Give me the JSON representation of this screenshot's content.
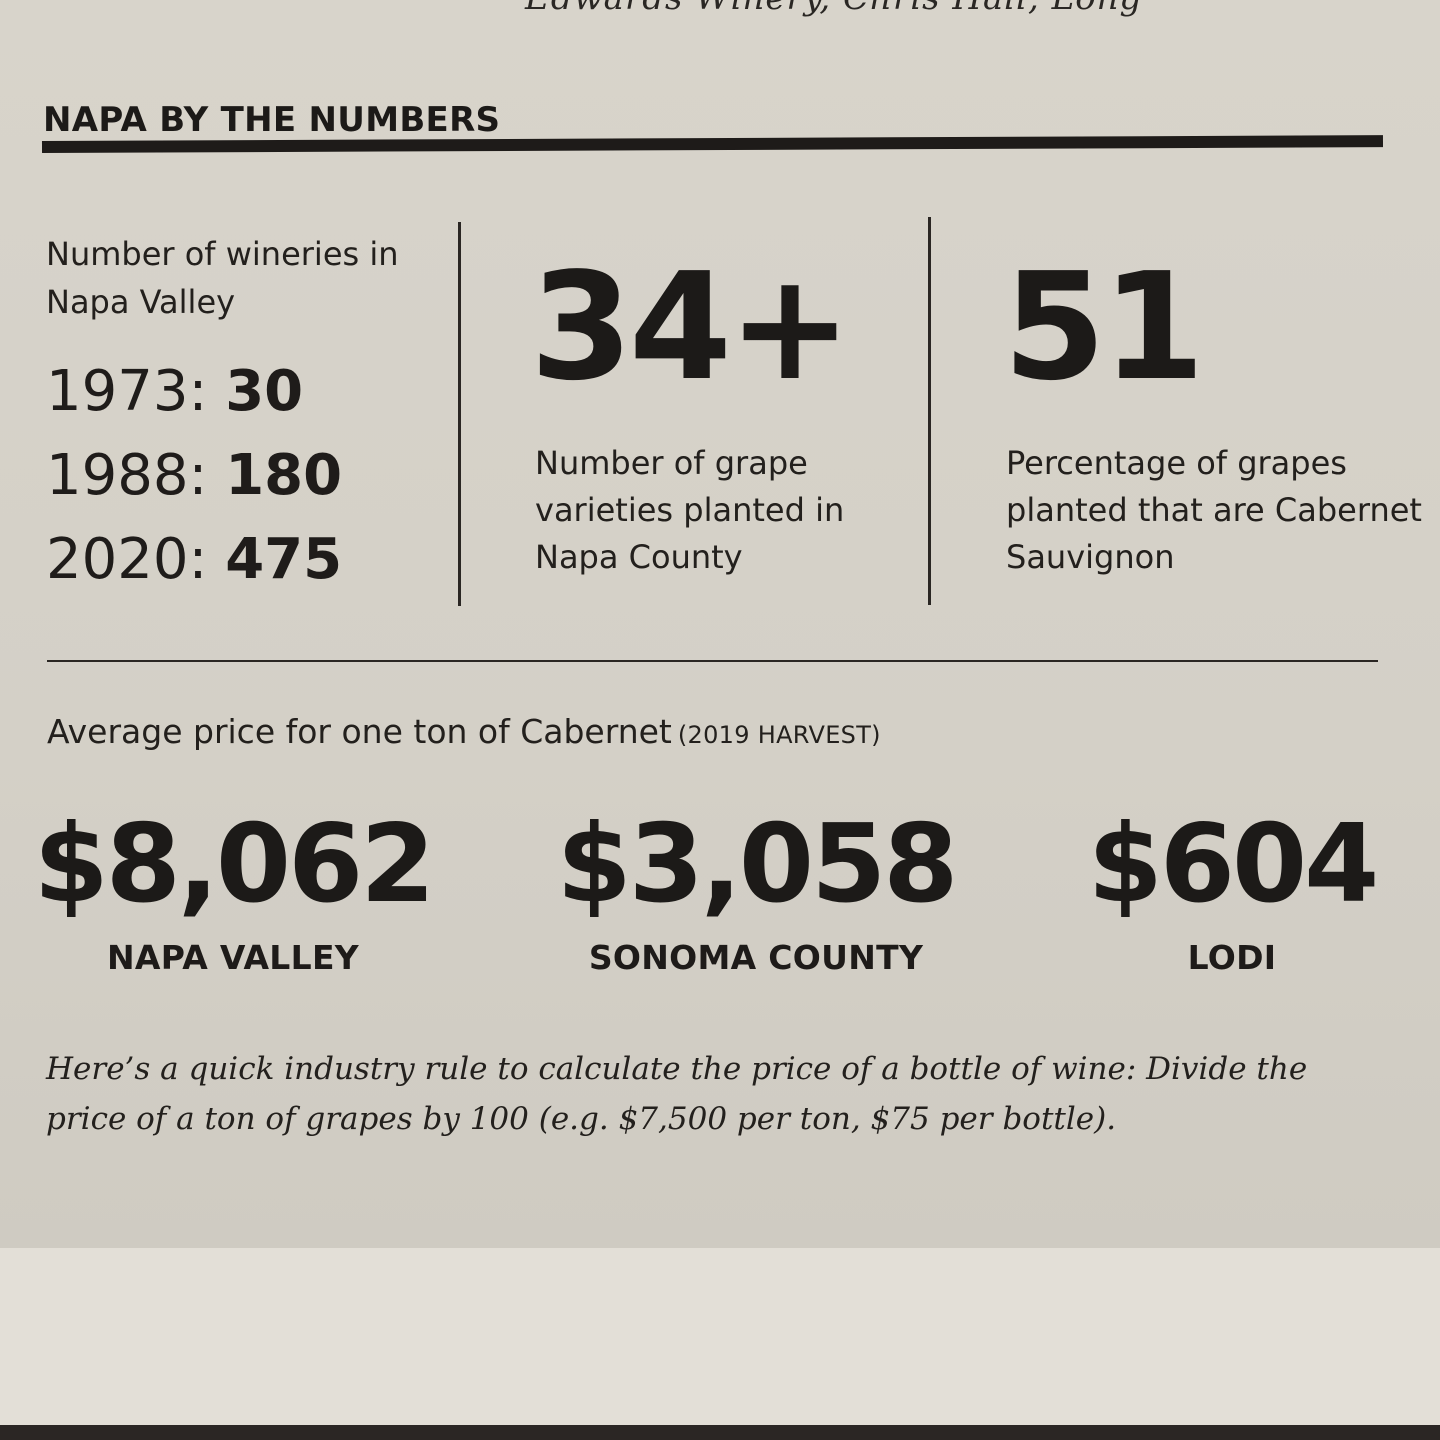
{
  "header_fragment": "Edwards Winery, Chris Hall, Long",
  "section_title": "NAPA BY THE NUMBERS",
  "wineries": {
    "label": "Number of wineries in Napa Valley",
    "rows": [
      {
        "year": "1973:",
        "count": "30"
      },
      {
        "year": "1988:",
        "count": "180"
      },
      {
        "year": "2020:",
        "count": "475"
      }
    ]
  },
  "stats": [
    {
      "value": "34+",
      "description": "Number of grape varieties planted in Napa County"
    },
    {
      "value": "51",
      "description": "Percentage of grapes planted that are Cabernet Sauvignon"
    }
  ],
  "prices": {
    "label": "Average price for one ton of Cabernet",
    "note": "(2019 HARVEST)",
    "items": [
      {
        "amount": "$8,062",
        "region": "NAPA VALLEY"
      },
      {
        "amount": "$3,058",
        "region": "SONOMA COUNTY"
      },
      {
        "amount": "$604",
        "region": "LODI"
      }
    ]
  },
  "rule_note": "Here’s a quick industry rule to calculate the price of a bottle of wine: Divide the price of a ton of grapes by 100 (e.g. $7,500 per ton, $75 per bottle)."
}
